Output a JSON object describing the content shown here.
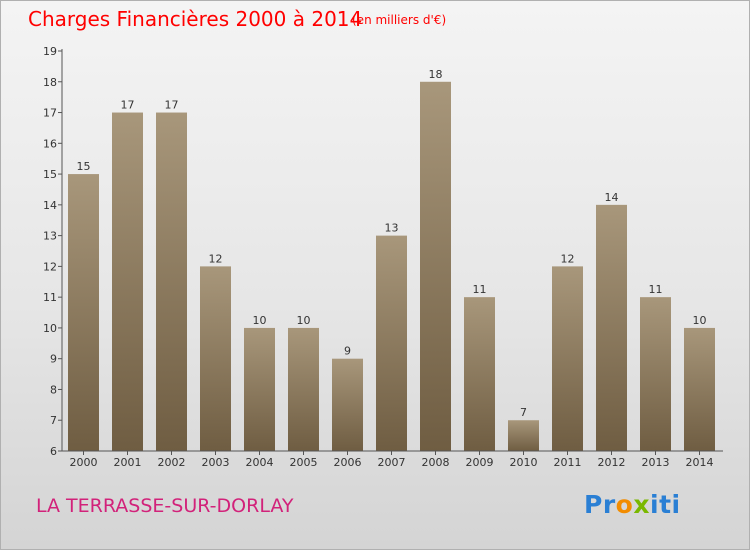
{
  "chart_data": {
    "type": "bar",
    "title": "Charges Financières 2000 à 2014",
    "subtitle": "(en milliers d'€)",
    "categories": [
      "2000",
      "2001",
      "2002",
      "2003",
      "2004",
      "2005",
      "2006",
      "2007",
      "2008",
      "2009",
      "2010",
      "2011",
      "2012",
      "2013",
      "2014"
    ],
    "values": [
      15,
      17,
      17,
      12,
      10,
      10,
      9,
      13,
      18,
      11,
      7,
      12,
      14,
      11,
      10
    ],
    "ylim": [
      6,
      19
    ],
    "yticks": [
      "6",
      "7",
      "8",
      "9",
      "10",
      "11",
      "12",
      "13",
      "14",
      "15",
      "16",
      "17",
      "18",
      "19"
    ],
    "grid": false,
    "bar_color": "#8f7c61"
  },
  "location": "LA TERRASSE-SUR-DORLAY",
  "logo": {
    "letters": [
      {
        "ch": "P",
        "color": "#2a7fd4"
      },
      {
        "ch": "r",
        "color": "#2a7fd4"
      },
      {
        "ch": "o",
        "color": "#f28c00"
      },
      {
        "ch": "x",
        "color": "#7ab800"
      },
      {
        "ch": "i",
        "color": "#2a7fd4"
      },
      {
        "ch": "t",
        "color": "#2a7fd4"
      },
      {
        "ch": "i",
        "color": "#2a7fd4"
      }
    ]
  }
}
